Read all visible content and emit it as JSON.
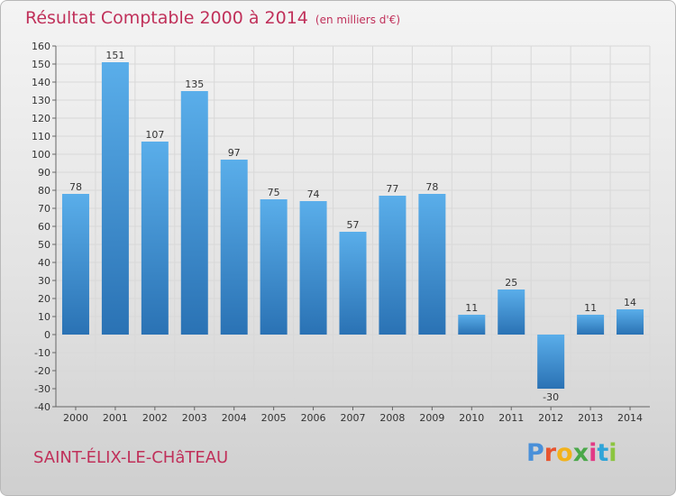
{
  "chart_data": {
    "type": "bar",
    "title": "Résultat Comptable 2000 à 2014",
    "subtitle": "(en milliers d'€)",
    "categories": [
      "2000",
      "2001",
      "2002",
      "2003",
      "2004",
      "2005",
      "2006",
      "2007",
      "2008",
      "2009",
      "2010",
      "2011",
      "2012",
      "2013",
      "2014"
    ],
    "values": [
      78,
      151,
      107,
      135,
      97,
      75,
      74,
      57,
      77,
      78,
      11,
      25,
      -30,
      11,
      14
    ],
    "ylim": [
      -40,
      160
    ],
    "ytick_step": 10,
    "grid": true,
    "xlabel": "",
    "ylabel": ""
  },
  "footer": {
    "town": "SAINT-ÉLIX-LE-CHâTEAU",
    "logo_letters": [
      "P",
      "r",
      "o",
      "x",
      "i",
      "t",
      "i"
    ],
    "logo_colors": [
      "#4a90d9",
      "#e8542e",
      "#f2b21b",
      "#4aa84a",
      "#e23a85",
      "#2fa4d8",
      "#8bc53f"
    ]
  },
  "colors": {
    "bar_top": "#5aaeea",
    "bar_bottom": "#2a72b4",
    "grid": "#d8d8d8",
    "axis": "#666666"
  }
}
